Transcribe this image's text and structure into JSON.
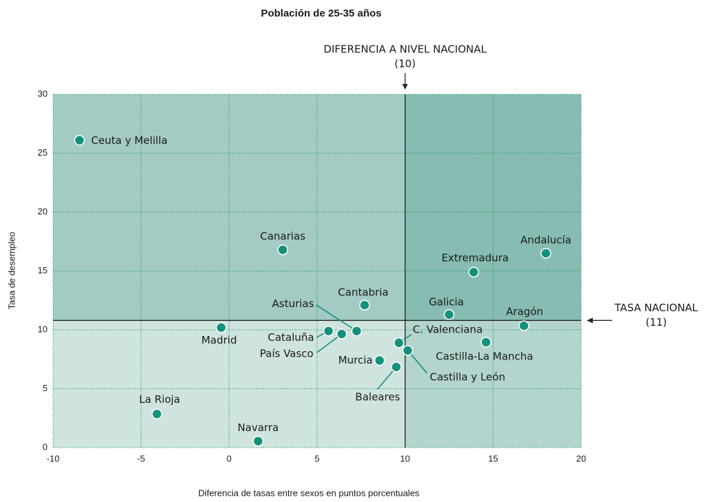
{
  "chart_data": {
    "type": "scatter",
    "title": "Población de 25-35 años",
    "x_label": "Diferencia de tasas entre sexos en puntos porcentuales",
    "y_label": "Tasa de desempleo",
    "xlim": [
      -10,
      20
    ],
    "ylim": [
      0,
      30
    ],
    "xticks": [
      -10,
      -5,
      0,
      5,
      10,
      15,
      20
    ],
    "yticks": [
      0,
      5,
      10,
      15,
      20,
      25,
      30
    ],
    "grid": true,
    "color": "#14917d",
    "reference_lines": {
      "x": {
        "label": "DIFERENCIA A NIVEL NACIONAL",
        "value": 10,
        "value_label": "(10)"
      },
      "y": {
        "label": "TASA NACIONAL",
        "value": 10.8,
        "value_label": "(11)"
      }
    },
    "points": [
      {
        "label": "Ceuta y Melilla",
        "x": -8.5,
        "y": 26.1
      },
      {
        "label": "Canarias",
        "x": 3.05,
        "y": 16.8
      },
      {
        "label": "Andalucía",
        "x": 18.0,
        "y": 16.5
      },
      {
        "label": "Extremadura",
        "x": 13.9,
        "y": 14.9
      },
      {
        "label": "Cantabria",
        "x": 7.7,
        "y": 12.1
      },
      {
        "label": "Galicia",
        "x": 12.5,
        "y": 11.3
      },
      {
        "label": "Aragón",
        "x": 16.75,
        "y": 10.35
      },
      {
        "label": "Madrid",
        "x": -0.45,
        "y": 10.2
      },
      {
        "label": "Asturias",
        "x": 7.25,
        "y": 9.9
      },
      {
        "label": "Cataluña",
        "x": 5.65,
        "y": 9.9
      },
      {
        "label": "País Vasco",
        "x": 6.4,
        "y": 9.65
      },
      {
        "label": "C. Valenciana",
        "x": 9.65,
        "y": 8.9
      },
      {
        "label": "Castilla-La Mancha",
        "x": 14.6,
        "y": 8.95
      },
      {
        "label": "Castilla y León",
        "x": 10.15,
        "y": 8.25
      },
      {
        "label": "Murcia",
        "x": 8.55,
        "y": 7.4
      },
      {
        "label": "Baleares",
        "x": 9.5,
        "y": 6.85
      },
      {
        "label": "La Rioja",
        "x": -4.1,
        "y": 2.85
      },
      {
        "label": "Navarra",
        "x": 1.65,
        "y": 0.55
      }
    ]
  }
}
